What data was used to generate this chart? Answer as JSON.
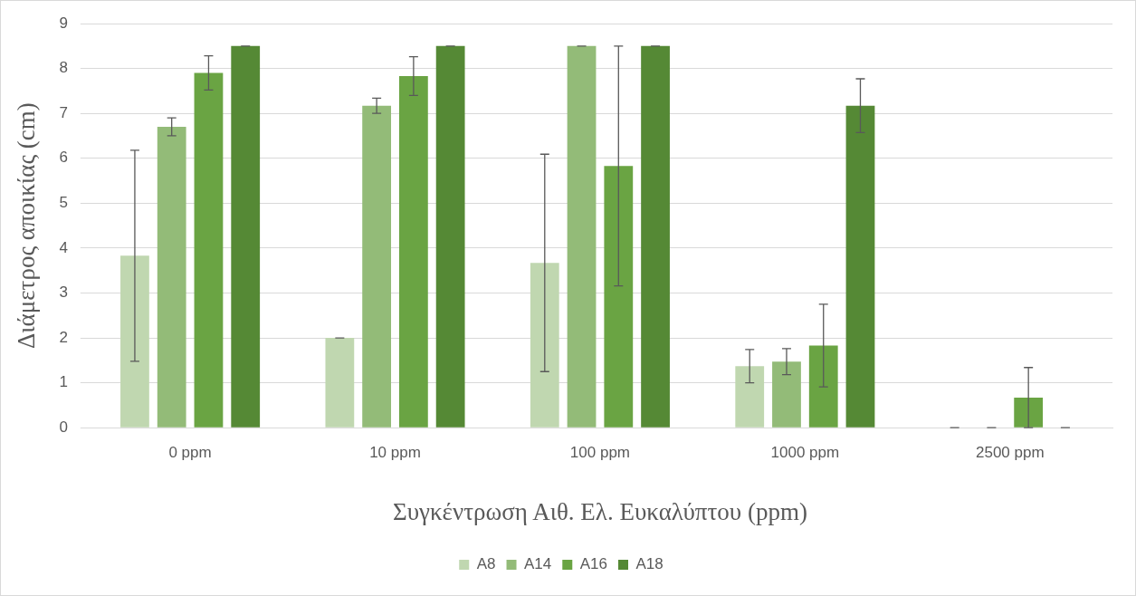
{
  "chart_data": {
    "type": "bar",
    "xlabel": "Συγκέντρωση Αιθ. Ελ. Ευκαλύπτου (ppm)",
    "ylabel": "Διάμετρος αποικίας (cm)",
    "categories": [
      "0 ppm",
      "10 ppm",
      "100 ppm",
      "1000 ppm",
      "2500 ppm"
    ],
    "series": [
      {
        "name": "A8",
        "color": "#c0d7b0",
        "values": [
          3.83,
          2.0,
          3.67,
          1.37,
          0
        ],
        "errors": [
          2.35,
          0,
          2.42,
          0.37,
          0
        ]
      },
      {
        "name": "A14",
        "color": "#93bb78",
        "values": [
          6.7,
          7.17,
          8.5,
          1.47,
          0
        ],
        "errors": [
          0.2,
          0.17,
          0,
          0.29,
          0
        ]
      },
      {
        "name": "A16",
        "color": "#6aa443",
        "values": [
          7.9,
          7.83,
          5.83,
          1.83,
          0.67
        ],
        "errors": [
          0.38,
          0.43,
          2.67,
          0.92,
          0.67
        ]
      },
      {
        "name": "A18",
        "color": "#558935",
        "values": [
          8.5,
          8.5,
          8.5,
          7.17,
          0
        ],
        "errors": [
          0,
          0,
          0,
          0.6,
          0
        ]
      }
    ],
    "ylim": [
      0,
      9
    ],
    "yticks": [
      0,
      1,
      2,
      3,
      4,
      5,
      6,
      7,
      8,
      9
    ],
    "grid": "y",
    "legend": "bottom"
  }
}
